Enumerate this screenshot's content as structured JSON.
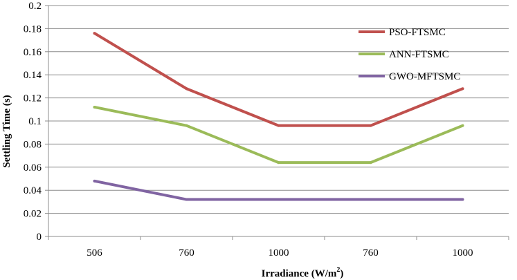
{
  "chart_data": {
    "type": "line",
    "title": "",
    "categories": [
      "506",
      "760",
      "1000",
      "760",
      "1000"
    ],
    "xlabel": "Irradiance (W/m",
    "xlabel_sup": "2",
    "xlabel_suffix": ")",
    "ylabel": "Settling Time (s)",
    "ylim": [
      0,
      0.2
    ],
    "yticks": [
      0,
      0.02,
      0.04,
      0.06,
      0.08,
      0.1,
      0.12,
      0.14,
      0.16,
      0.18,
      0.2
    ],
    "ytick_labels": [
      "0",
      "0.02",
      "0.04",
      "0.06",
      "0.08",
      "0.1",
      "0.12",
      "0.14",
      "0.16",
      "0.18",
      "0.2"
    ],
    "grid": "horizontal",
    "legend_position": "top-right",
    "series": [
      {
        "name": "PSO-FTSMC",
        "color": "#c0504d",
        "values": [
          0.176,
          0.128,
          0.096,
          0.096,
          0.128
        ]
      },
      {
        "name": "ANN-FTSMC",
        "color": "#9bbb59",
        "values": [
          0.112,
          0.096,
          0.064,
          0.064,
          0.096
        ]
      },
      {
        "name": "GWO-MFTSMC",
        "color": "#8064a2",
        "values": [
          0.048,
          0.032,
          0.032,
          0.032,
          0.032
        ]
      }
    ]
  }
}
